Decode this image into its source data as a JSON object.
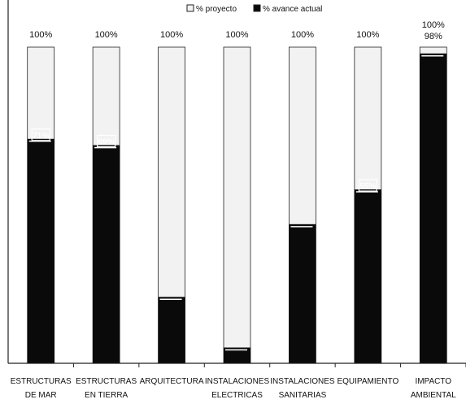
{
  "chart_data": {
    "type": "bar",
    "categories": [
      [
        "ESTRUCTURAS",
        "DE MAR"
      ],
      [
        "ESTRUCTURAS",
        "EN TIERRA"
      ],
      [
        "ARQUITECTURA"
      ],
      [
        "INSTALACIONES",
        "ELECTRICAS"
      ],
      [
        "INSTALACIONES",
        "SANITARIAS"
      ],
      [
        "EQUIPAMIENTO"
      ],
      [
        "IMPACTO",
        "AMBIENTAL"
      ]
    ],
    "legend_position": "top-center",
    "grid": false,
    "ylim": [
      0,
      100
    ],
    "series": [
      {
        "name": "% proyecto",
        "values": [
          100,
          100,
          100,
          100,
          100,
          100,
          100
        ],
        "labels": [
          "100%",
          "100%",
          "100%",
          "100%",
          "100%",
          "100%",
          "100%"
        ],
        "color": "#f2f2f2"
      },
      {
        "name": "% avance actual",
        "values": [
          71,
          69,
          21,
          5,
          44,
          55,
          98
        ],
        "labels": [
          "71%",
          "69%",
          "",
          "",
          "",
          "55%",
          "98%"
        ],
        "color": "#0a0a0a"
      }
    ]
  }
}
